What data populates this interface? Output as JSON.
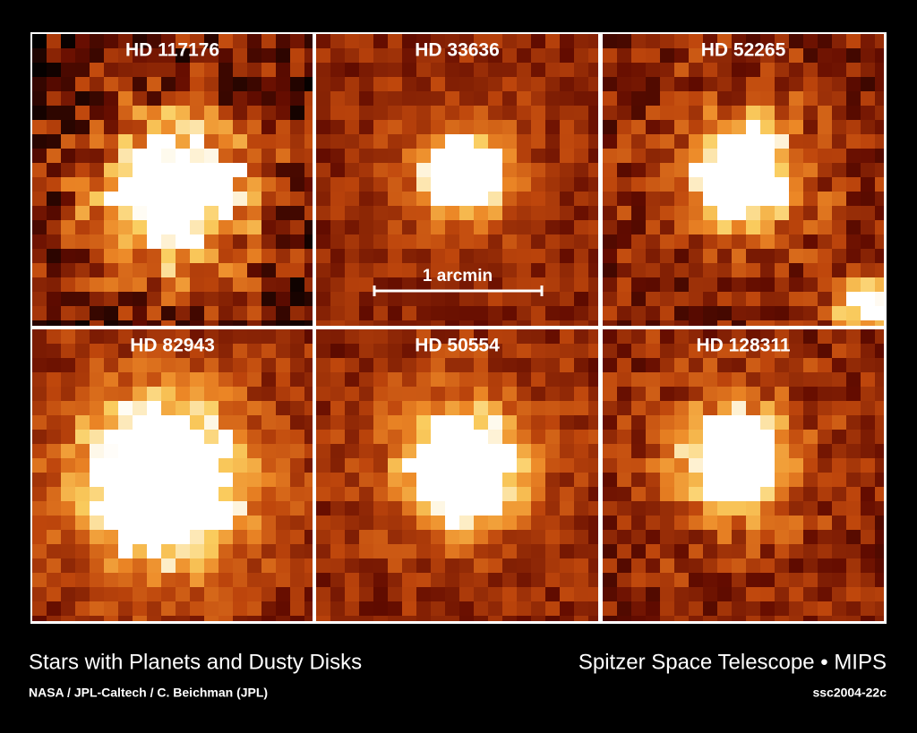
{
  "panels": [
    {
      "label": "HD 117176"
    },
    {
      "label": "HD 33636"
    },
    {
      "label": "HD 52265"
    },
    {
      "label": "HD 82943"
    },
    {
      "label": "HD 50554"
    },
    {
      "label": "HD 128311"
    }
  ],
  "scale_bar": {
    "label": "1 arcmin"
  },
  "footer": {
    "title": "Stars with Planets and Dusty Disks",
    "credit": "NASA / JPL-Caltech / C. Beichman (JPL)",
    "mission": "Spitzer Space Telescope • MIPS",
    "id": "ssc2004-22c"
  }
}
